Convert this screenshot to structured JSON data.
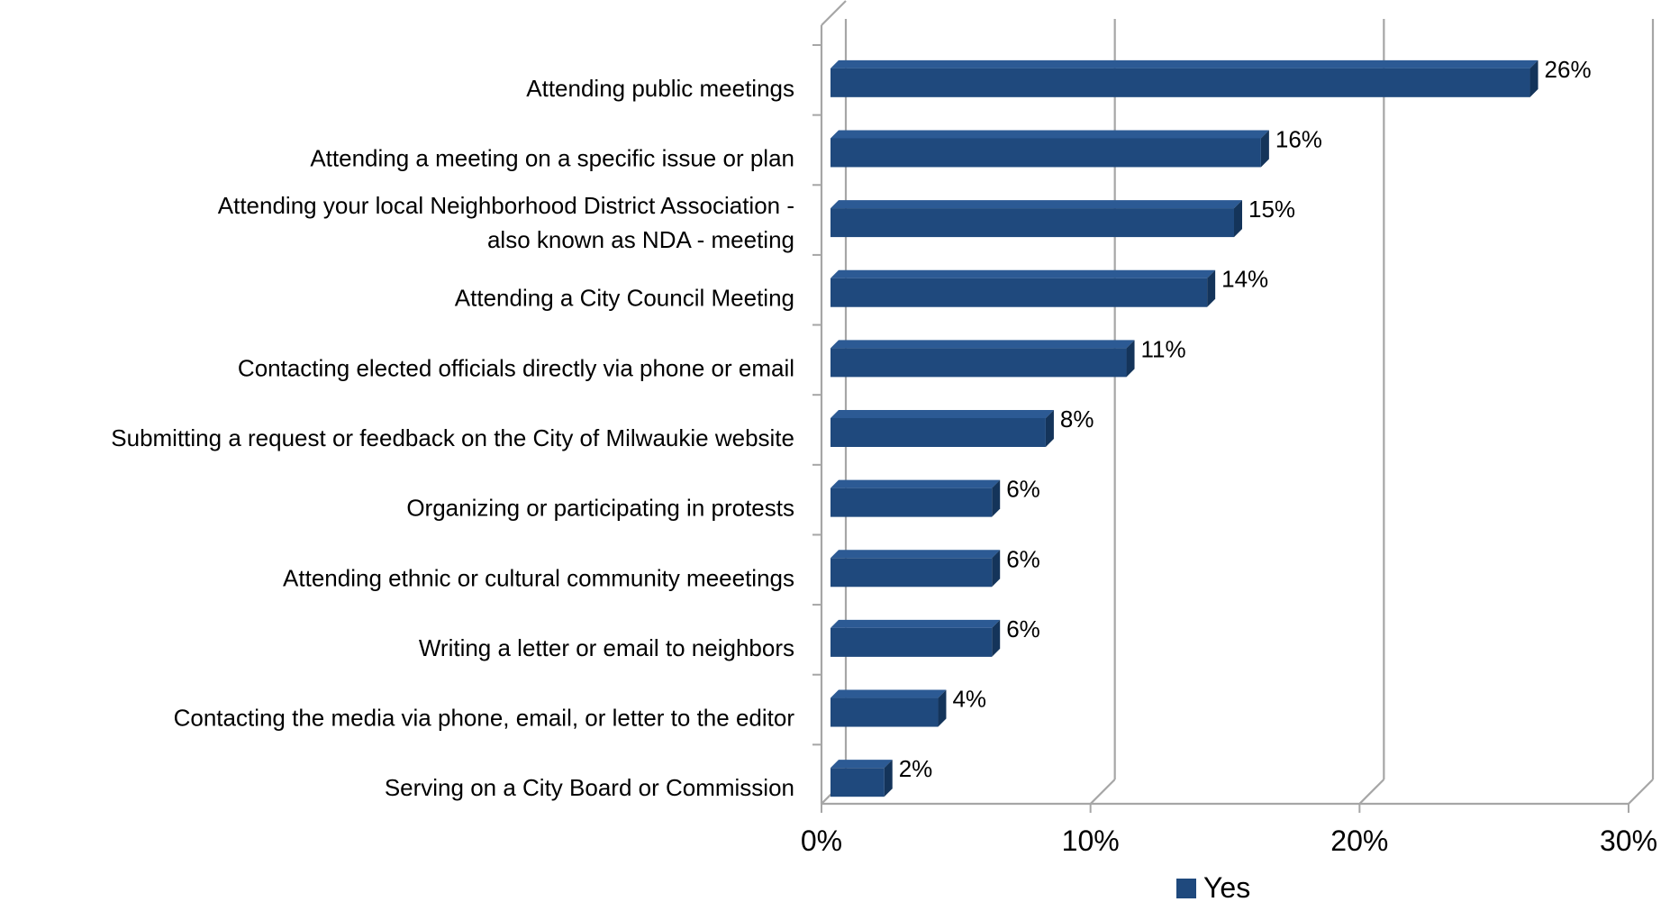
{
  "chart_data": {
    "type": "bar",
    "orientation": "horizontal",
    "categories": [
      "Attending public meetings",
      "Attending a meeting on a specific issue or plan",
      "Attending your local Neighborhood District Association - also known as NDA - meeting",
      "Attending a City Council Meeting",
      "Contacting elected officials directly via phone or email",
      "Submitting a request or feedback on the City of Milwaukie website",
      "Organizing or participating in protests",
      "Attending ethnic or cultural community meeetings",
      "Writing a letter or email to neighbors",
      "Contacting the media via phone, email, or letter to the editor",
      "Serving on a City Board or Commission"
    ],
    "category_lines": [
      [
        "Attending public meetings"
      ],
      [
        "Attending a meeting on a specific issue or plan"
      ],
      [
        "Attending your local Neighborhood District Association -",
        "also known as NDA - meeting"
      ],
      [
        "Attending a City Council Meeting"
      ],
      [
        "Contacting elected officials directly via phone or email"
      ],
      [
        "Submitting a request or feedback on the City of Milwaukie website"
      ],
      [
        "Organizing or participating in protests"
      ],
      [
        "Attending ethnic or cultural community meeetings"
      ],
      [
        "Writing a letter or email to neighbors"
      ],
      [
        "Contacting the media via phone, email, or letter to the editor"
      ],
      [
        "Serving on a City Board or Commission"
      ]
    ],
    "series": [
      {
        "name": "Yes",
        "values": [
          26,
          16,
          15,
          14,
          11,
          8,
          6,
          6,
          6,
          4,
          2
        ],
        "labels": [
          "26%",
          "16%",
          "15%",
          "14%",
          "11%",
          "8%",
          "6%",
          "6%",
          "6%",
          "4%",
          "2%"
        ],
        "color": "#1F497D"
      }
    ],
    "xlim": [
      0,
      30
    ],
    "x_ticks": [
      0,
      10,
      20,
      30
    ],
    "x_tick_labels": [
      "0%",
      "10%",
      "20%",
      "30%"
    ],
    "grid": true,
    "legend": {
      "position": "bottom",
      "entries": [
        "Yes"
      ]
    },
    "style": "3d-bar",
    "colors": {
      "bar_front": "#1F497D",
      "bar_top": "#2C5A94",
      "bar_side": "#14345A",
      "grid": "#A6A6A6"
    }
  }
}
